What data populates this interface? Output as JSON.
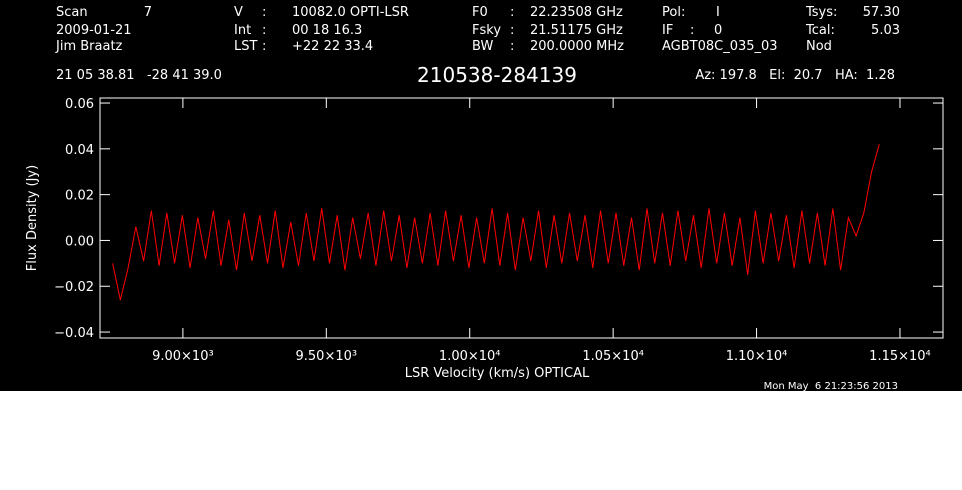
{
  "header": {
    "rows": [
      [
        [
          "Scan",
          "7"
        ],
        [
          "V",
          ":",
          "10082.0 OPTI-LSR"
        ],
        [
          "F0",
          ":",
          "22.23508 GHz"
        ],
        [
          "Pol:",
          "I"
        ],
        [
          "Tsys:",
          "57.30"
        ]
      ],
      [
        [
          "2009-01-21"
        ],
        [
          "Int",
          ":",
          "00 18 16.3"
        ],
        [
          "Fsky",
          ":",
          "21.51175 GHz"
        ],
        [
          "IF",
          ":",
          "0"
        ],
        [
          "Tcal:",
          "5.03"
        ]
      ],
      [
        [
          "Jim Braatz"
        ],
        [
          "LST",
          ":",
          "+22 22 33.4"
        ],
        [
          "BW",
          ":",
          "200.0000 MHz"
        ],
        [
          "AGBT08C_035_03"
        ],
        [
          "Nod"
        ]
      ]
    ],
    "coords": "21 05 38.81   -28 41 39.0",
    "source": "210538-284139",
    "pointing": "Az: 197.8   El:  20.7   HA:  1.28",
    "timestamp": "Mon May  6 21:23:56 2013"
  },
  "chart_data": {
    "type": "line",
    "x_label": "LSR Velocity (km/s) OPTICAL",
    "y_label": "Flux Density (Jy)",
    "xlim": [
      8711,
      11650
    ],
    "ylim": [
      -0.0426,
      0.0622
    ],
    "xticks": [
      {
        "value": 9000,
        "label": "9.00×10³"
      },
      {
        "value": 9500,
        "label": "9.50×10³"
      },
      {
        "value": 10000,
        "label": "1.00×10⁴"
      },
      {
        "value": 10500,
        "label": "1.05×10⁴"
      },
      {
        "value": 11000,
        "label": "1.10×10⁴"
      },
      {
        "value": 11500,
        "label": "1.15×10⁴"
      }
    ],
    "yticks": [
      {
        "value": -0.04,
        "label": "−0.04"
      },
      {
        "value": -0.02,
        "label": "−0.02"
      },
      {
        "value": 0,
        "label": "0.00"
      },
      0.02,
      0.04,
      0.06
    ],
    "x": [
      8755,
      8782,
      8809,
      8836,
      8863,
      8890,
      8917,
      8944,
      8971,
      8998,
      9025,
      9052,
      9079,
      9106,
      9133,
      9160,
      9187,
      9214,
      9241,
      9268,
      9295,
      9322,
      9349,
      9376,
      9403,
      9430,
      9457,
      9484,
      9511,
      9538,
      9565,
      9592,
      9619,
      9646,
      9673,
      9700,
      9727,
      9754,
      9781,
      9808,
      9835,
      9862,
      9889,
      9916,
      9943,
      9970,
      9997,
      10024,
      10051,
      10078,
      10105,
      10132,
      10159,
      10186,
      10213,
      10240,
      10267,
      10294,
      10321,
      10348,
      10375,
      10402,
      10429,
      10456,
      10483,
      10510,
      10537,
      10564,
      10591,
      10618,
      10645,
      10672,
      10699,
      10726,
      10753,
      10780,
      10807,
      10834,
      10861,
      10888,
      10915,
      10942,
      10969,
      10996,
      11023,
      11050,
      11077,
      11104,
      11131,
      11158,
      11185,
      11212,
      11239,
      11266,
      11293,
      11320,
      11347,
      11374,
      11401,
      11428
    ],
    "series": [
      {
        "color": "#ff0000",
        "values": [
          -0.01,
          -0.026,
          -0.012,
          0.006,
          -0.009,
          0.013,
          -0.011,
          0.012,
          -0.01,
          0.011,
          -0.012,
          0.01,
          -0.008,
          0.013,
          -0.011,
          0.009,
          -0.013,
          0.012,
          -0.009,
          0.011,
          -0.01,
          0.013,
          -0.012,
          0.008,
          -0.011,
          0.012,
          -0.009,
          0.014,
          -0.01,
          0.011,
          -0.013,
          0.01,
          -0.008,
          0.012,
          -0.011,
          0.013,
          -0.009,
          0.011,
          -0.012,
          0.01,
          -0.01,
          0.012,
          -0.011,
          0.013,
          -0.009,
          0.011,
          -0.012,
          0.01,
          -0.01,
          0.014,
          -0.011,
          0.012,
          -0.013,
          0.01,
          -0.009,
          0.013,
          -0.012,
          0.011,
          -0.01,
          0.012,
          -0.009,
          0.011,
          -0.012,
          0.013,
          -0.01,
          0.012,
          -0.011,
          0.01,
          -0.013,
          0.014,
          -0.01,
          0.012,
          -0.011,
          0.013,
          -0.009,
          0.011,
          -0.012,
          0.014,
          -0.01,
          0.012,
          -0.011,
          0.01,
          -0.015,
          0.013,
          -0.01,
          0.012,
          -0.009,
          0.011,
          -0.012,
          0.013,
          -0.01,
          0.012,
          -0.011,
          0.014,
          -0.013,
          0.01,
          0.002,
          0.012,
          0.03,
          0.042
        ]
      }
    ]
  }
}
